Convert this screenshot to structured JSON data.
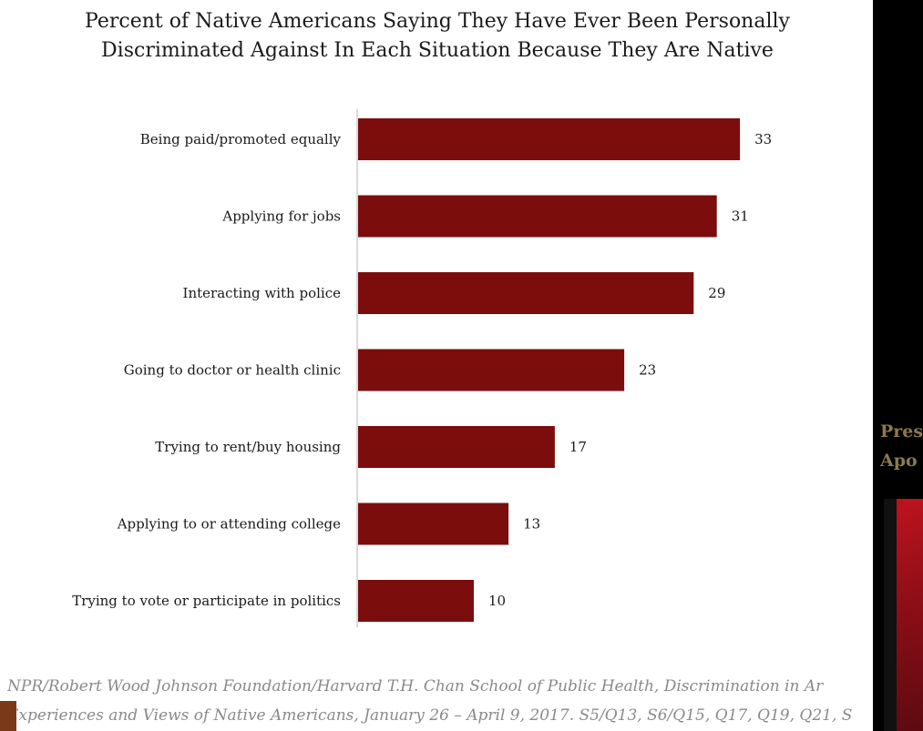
{
  "chart_data": {
    "type": "bar",
    "orientation": "horizontal",
    "title": "Percent of Native Americans Saying They Have Ever Been Personally Discriminated Against In Each Situation Because They Are Native",
    "title_lines": [
      "Percent of Native Americans Saying They Have Ever Been Personally",
      "Discriminated Against In Each Situation Because They Are Native"
    ],
    "categories": [
      "Being paid/promoted equally",
      "Applying for jobs",
      "Interacting with police",
      "Going to doctor or health clinic",
      "Trying to rent/buy housing",
      "Applying to or attending college",
      "Trying to vote or participate in politics"
    ],
    "values": [
      33,
      31,
      29,
      23,
      17,
      13,
      10
    ],
    "xlim": [
      0,
      35
    ],
    "grid": false,
    "bar_color": "#7b0d0d"
  },
  "source": {
    "line1": "NPR/Robert Wood Johnson Foundation/Harvard T.H. Chan School of Public Health, Discrimination in Ar",
    "line2": "Experiences and Views of Native Americans, January 26 – April 9, 2017. S5/Q13, S6/Q15, Q17, Q19, Q21, S"
  },
  "side_panel": {
    "line1": "Pres",
    "line2": "Apo"
  }
}
